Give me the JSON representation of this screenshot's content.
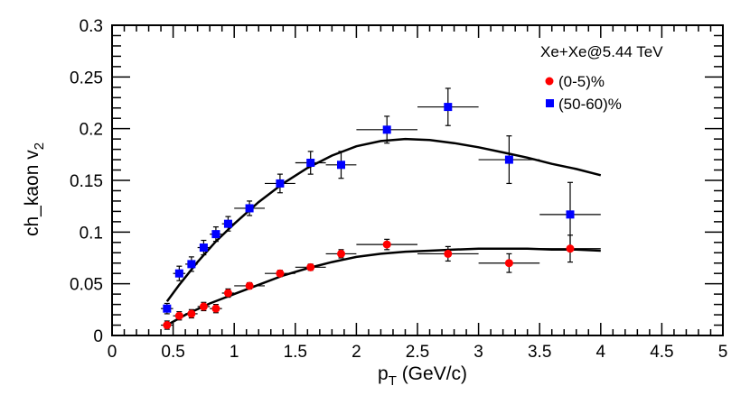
{
  "chart_data": {
    "type": "scatter",
    "title": "",
    "xlabel": "p",
    "xlabel_sub": "T",
    "xlabel_unit": " (GeV/c)",
    "ylabel": "ch_kaon v",
    "ylabel_sub": "2",
    "xlim": [
      0,
      5
    ],
    "ylim": [
      0,
      0.3
    ],
    "x_ticks": [
      0,
      0.5,
      1,
      1.5,
      2,
      2.5,
      3,
      3.5,
      4,
      4.5,
      5
    ],
    "x_tick_labels": [
      "0",
      "0.5",
      "1",
      "1.5",
      "2",
      "2.5",
      "3",
      "3.5",
      "4",
      "4.5",
      "5"
    ],
    "y_ticks": [
      0,
      0.05,
      0.1,
      0.15,
      0.2,
      0.25,
      0.3
    ],
    "y_tick_labels": [
      "0",
      "0.05",
      "0.1",
      "0.15",
      "0.2",
      "0.25",
      "0.3"
    ],
    "legend_title": "Xe+Xe@5.44 TeV",
    "legend_position": "top-right",
    "series": [
      {
        "name": "(0-5)%",
        "marker": "circle",
        "color": "#ff0000",
        "points": [
          {
            "x": 0.45,
            "y": 0.01,
            "xerr": 0.05,
            "yerr": 0.004
          },
          {
            "x": 0.55,
            "y": 0.019,
            "xerr": 0.05,
            "yerr": 0.004
          },
          {
            "x": 0.65,
            "y": 0.021,
            "xerr": 0.05,
            "yerr": 0.004
          },
          {
            "x": 0.75,
            "y": 0.028,
            "xerr": 0.05,
            "yerr": 0.004
          },
          {
            "x": 0.85,
            "y": 0.026,
            "xerr": 0.05,
            "yerr": 0.004
          },
          {
            "x": 0.95,
            "y": 0.041,
            "xerr": 0.05,
            "yerr": 0.004
          },
          {
            "x": 1.125,
            "y": 0.048,
            "xerr": 0.125,
            "yerr": 0.003
          },
          {
            "x": 1.375,
            "y": 0.06,
            "xerr": 0.125,
            "yerr": 0.003
          },
          {
            "x": 1.625,
            "y": 0.066,
            "xerr": 0.125,
            "yerr": 0.003
          },
          {
            "x": 1.875,
            "y": 0.079,
            "xerr": 0.125,
            "yerr": 0.004
          },
          {
            "x": 2.25,
            "y": 0.088,
            "xerr": 0.25,
            "yerr": 0.005
          },
          {
            "x": 2.75,
            "y": 0.079,
            "xerr": 0.25,
            "yerr": 0.007
          },
          {
            "x": 3.25,
            "y": 0.07,
            "xerr": 0.25,
            "yerr": 0.009
          },
          {
            "x": 3.75,
            "y": 0.084,
            "xerr": 0.25,
            "yerr": 0.013
          }
        ]
      },
      {
        "name": "(50-60)%",
        "marker": "square",
        "color": "#0000ff",
        "points": [
          {
            "x": 0.45,
            "y": 0.026,
            "xerr": 0.05,
            "yerr": 0.005
          },
          {
            "x": 0.55,
            "y": 0.06,
            "xerr": 0.05,
            "yerr": 0.007
          },
          {
            "x": 0.65,
            "y": 0.069,
            "xerr": 0.05,
            "yerr": 0.007
          },
          {
            "x": 0.75,
            "y": 0.085,
            "xerr": 0.05,
            "yerr": 0.007
          },
          {
            "x": 0.85,
            "y": 0.098,
            "xerr": 0.05,
            "yerr": 0.007
          },
          {
            "x": 0.95,
            "y": 0.108,
            "xerr": 0.05,
            "yerr": 0.007
          },
          {
            "x": 1.125,
            "y": 0.123,
            "xerr": 0.125,
            "yerr": 0.007
          },
          {
            "x": 1.375,
            "y": 0.147,
            "xerr": 0.125,
            "yerr": 0.009
          },
          {
            "x": 1.625,
            "y": 0.167,
            "xerr": 0.125,
            "yerr": 0.011
          },
          {
            "x": 1.875,
            "y": 0.165,
            "xerr": 0.125,
            "yerr": 0.013
          },
          {
            "x": 2.25,
            "y": 0.199,
            "xerr": 0.25,
            "yerr": 0.013
          },
          {
            "x": 2.75,
            "y": 0.221,
            "xerr": 0.25,
            "yerr": 0.018
          },
          {
            "x": 3.25,
            "y": 0.17,
            "xerr": 0.25,
            "yerr": 0.023
          },
          {
            "x": 3.75,
            "y": 0.117,
            "xerr": 0.25,
            "yerr": 0.031
          }
        ]
      }
    ],
    "fit_curves": [
      {
        "name": "fit-(0-5)%",
        "color": "#000000",
        "points": [
          [
            0.45,
            0.01
          ],
          [
            0.6,
            0.02
          ],
          [
            0.8,
            0.031
          ],
          [
            1.0,
            0.04
          ],
          [
            1.2,
            0.049
          ],
          [
            1.4,
            0.058
          ],
          [
            1.6,
            0.065
          ],
          [
            1.8,
            0.071
          ],
          [
            2.0,
            0.076
          ],
          [
            2.2,
            0.079
          ],
          [
            2.4,
            0.081
          ],
          [
            2.6,
            0.082
          ],
          [
            2.8,
            0.083
          ],
          [
            3.0,
            0.084
          ],
          [
            3.2,
            0.084
          ],
          [
            3.4,
            0.084
          ],
          [
            3.6,
            0.083
          ],
          [
            3.8,
            0.083
          ],
          [
            4.0,
            0.082
          ]
        ]
      },
      {
        "name": "fit-(50-60)%",
        "color": "#000000",
        "points": [
          [
            0.45,
            0.033
          ],
          [
            0.55,
            0.049
          ],
          [
            0.7,
            0.071
          ],
          [
            0.85,
            0.091
          ],
          [
            1.0,
            0.108
          ],
          [
            1.2,
            0.129
          ],
          [
            1.4,
            0.147
          ],
          [
            1.6,
            0.162
          ],
          [
            1.8,
            0.174
          ],
          [
            2.0,
            0.183
          ],
          [
            2.2,
            0.188
          ],
          [
            2.4,
            0.19
          ],
          [
            2.6,
            0.189
          ],
          [
            2.8,
            0.186
          ],
          [
            3.0,
            0.182
          ],
          [
            3.2,
            0.177
          ],
          [
            3.4,
            0.172
          ],
          [
            3.6,
            0.166
          ],
          [
            3.8,
            0.161
          ],
          [
            4.0,
            0.155
          ]
        ]
      }
    ]
  }
}
